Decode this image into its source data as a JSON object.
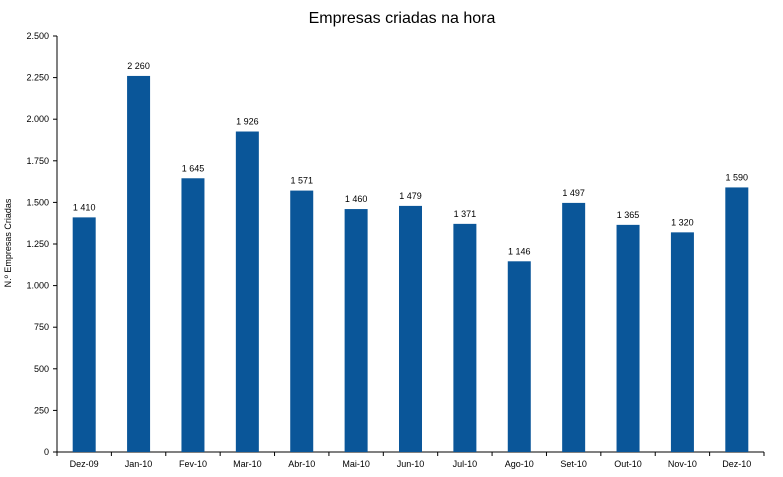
{
  "chart_data": {
    "type": "bar",
    "title": "Empresas criadas na hora",
    "xlabel": "",
    "ylabel": "N.º Empresas Criadas",
    "ylim": [
      0,
      2500
    ],
    "yticks": [
      0,
      250,
      500,
      750,
      1000,
      1250,
      1500,
      1750,
      2000,
      2250,
      2500
    ],
    "ytick_labels": [
      "0",
      "250",
      "500",
      "750",
      "1.000",
      "1.250",
      "1.500",
      "1.750",
      "2.000",
      "2.250",
      "2.500"
    ],
    "categories": [
      "Dez-09",
      "Jan-10",
      "Fev-10",
      "Mar-10",
      "Abr-10",
      "Mai-10",
      "Jun-10",
      "Jul-10",
      "Ago-10",
      "Set-10",
      "Out-10",
      "Nov-10",
      "Dez-10"
    ],
    "values": [
      1410,
      2260,
      1645,
      1926,
      1571,
      1460,
      1479,
      1371,
      1146,
      1497,
      1365,
      1320,
      1590
    ],
    "value_labels": [
      "1 410",
      "2 260",
      "1 645",
      "1 926",
      "1 571",
      "1 460",
      "1 479",
      "1 371",
      "1 146",
      "1 497",
      "1 365",
      "1 320",
      "1 590"
    ],
    "bar_color": "#0a5699",
    "grid": false,
    "legend": "none"
  }
}
